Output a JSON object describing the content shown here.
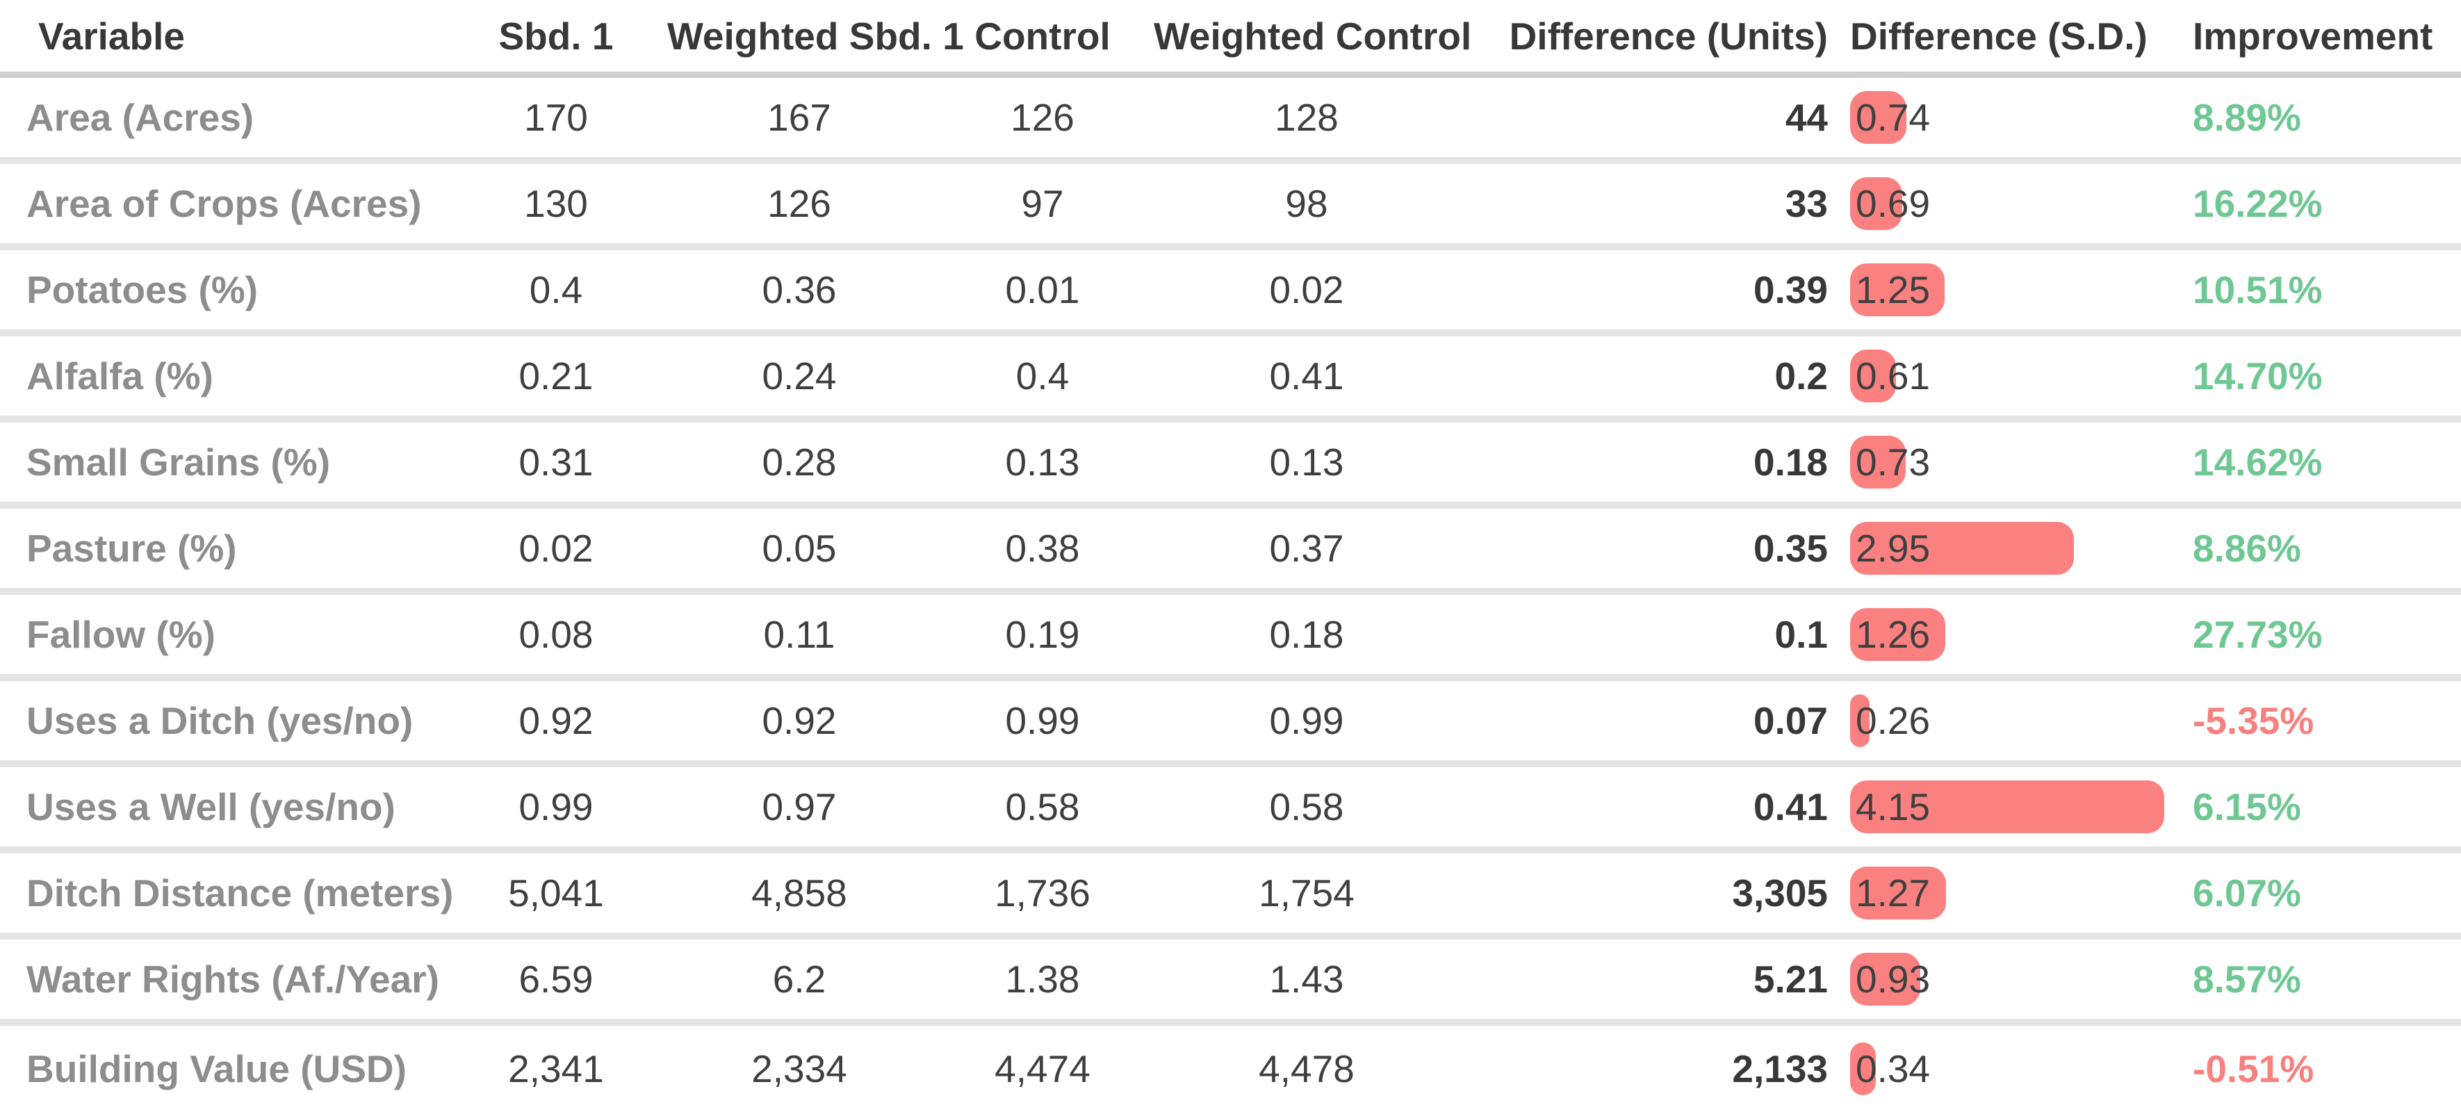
{
  "chart_data": {
    "type": "table",
    "columns": [
      "Variable",
      "Sbd. 1",
      "Weighted Sbd. 1",
      "Control",
      "Weighted Control",
      "Difference (Units)",
      "Difference (S.D.)",
      "Improvement"
    ],
    "rows": [
      {
        "variable": "Area (Acres)",
        "sbd1": "170",
        "weighted_sbd1": "167",
        "control": "126",
        "weighted_control": "128",
        "difference_units": "44",
        "difference_sd": "0.74",
        "improvement": "8.89%"
      },
      {
        "variable": "Area of Crops (Acres)",
        "sbd1": "130",
        "weighted_sbd1": "126",
        "control": "97",
        "weighted_control": "98",
        "difference_units": "33",
        "difference_sd": "0.69",
        "improvement": "16.22%"
      },
      {
        "variable": "Potatoes (%)",
        "sbd1": "0.4",
        "weighted_sbd1": "0.36",
        "control": "0.01",
        "weighted_control": "0.02",
        "difference_units": "0.39",
        "difference_sd": "1.25",
        "improvement": "10.51%"
      },
      {
        "variable": "Alfalfa (%)",
        "sbd1": "0.21",
        "weighted_sbd1": "0.24",
        "control": "0.4",
        "weighted_control": "0.41",
        "difference_units": "0.2",
        "difference_sd": "0.61",
        "improvement": "14.70%"
      },
      {
        "variable": "Small Grains (%)",
        "sbd1": "0.31",
        "weighted_sbd1": "0.28",
        "control": "0.13",
        "weighted_control": "0.13",
        "difference_units": "0.18",
        "difference_sd": "0.73",
        "improvement": "14.62%"
      },
      {
        "variable": "Pasture (%)",
        "sbd1": "0.02",
        "weighted_sbd1": "0.05",
        "control": "0.38",
        "weighted_control": "0.37",
        "difference_units": "0.35",
        "difference_sd": "2.95",
        "improvement": "8.86%"
      },
      {
        "variable": "Fallow (%)",
        "sbd1": "0.08",
        "weighted_sbd1": "0.11",
        "control": "0.19",
        "weighted_control": "0.18",
        "difference_units": "0.1",
        "difference_sd": "1.26",
        "improvement": "27.73%"
      },
      {
        "variable": "Uses a Ditch (yes/no)",
        "sbd1": "0.92",
        "weighted_sbd1": "0.92",
        "control": "0.99",
        "weighted_control": "0.99",
        "difference_units": "0.07",
        "difference_sd": "0.26",
        "improvement": "-5.35%"
      },
      {
        "variable": "Uses a Well (yes/no)",
        "sbd1": "0.99",
        "weighted_sbd1": "0.97",
        "control": "0.58",
        "weighted_control": "0.58",
        "difference_units": "0.41",
        "difference_sd": "4.15",
        "improvement": "6.15%"
      },
      {
        "variable": "Ditch Distance (meters)",
        "sbd1": "5,041",
        "weighted_sbd1": "4,858",
        "control": "1,736",
        "weighted_control": "1,754",
        "difference_units": "3,305",
        "difference_sd": "1.27",
        "improvement": "6.07%"
      },
      {
        "variable": "Water Rights (Af./Year)",
        "sbd1": "6.59",
        "weighted_sbd1": "6.2",
        "control": "1.38",
        "weighted_control": "1.43",
        "difference_units": "5.21",
        "difference_sd": "0.93",
        "improvement": "8.57%"
      },
      {
        "variable": "Building Value (USD)",
        "sbd1": "2,341",
        "weighted_sbd1": "2,334",
        "control": "4,474",
        "weighted_control": "4,478",
        "difference_units": "2,133",
        "difference_sd": "0.34",
        "improvement": "-0.51%"
      }
    ],
    "embedded_bar": {
      "column": "Difference (S.D.)",
      "note": "horizontal pill bar behind each S.D. value, width proportional to the value"
    },
    "legend_position": "none",
    "grid": "horizontal row dividers only"
  },
  "colors": {
    "bar": "#fb8181",
    "positive_improvement": "#6fc793",
    "negative_improvement": "#f8807f",
    "header_text": "#383838",
    "label_text": "#8d8d8d",
    "value_text": "#3f3f3f",
    "row_divider": "#e4e4e4",
    "header_divider": "#cfcfcf"
  }
}
